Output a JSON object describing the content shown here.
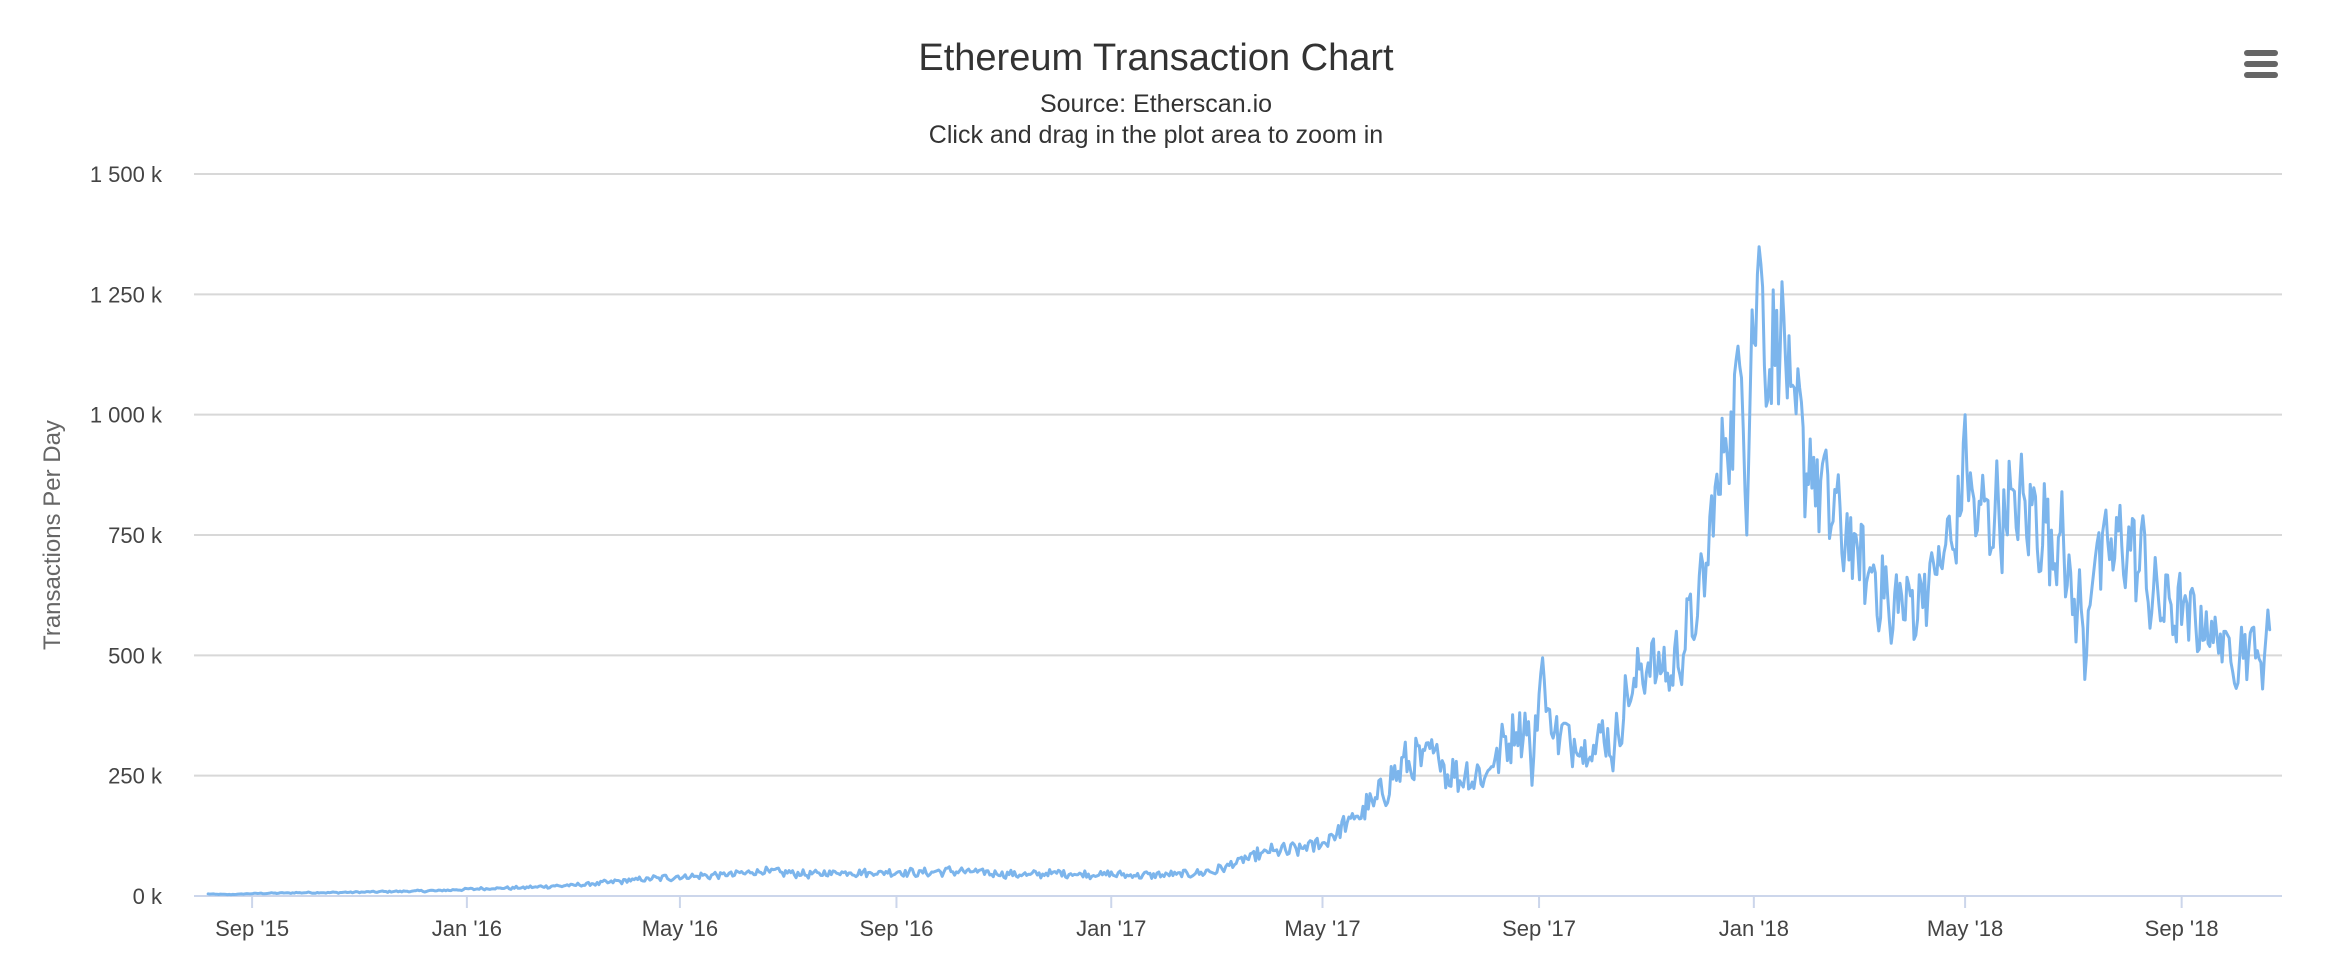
{
  "chart_data": {
    "type": "line",
    "title": "Ethereum Transaction Chart",
    "subtitle": "Source: Etherscan.io",
    "zoom_hint": "Click and drag in the plot area to zoom in",
    "xlabel": "",
    "ylabel": "Transactions Per Day",
    "x_type": "date",
    "xlim": [
      "2015-07-30",
      "2018-10-28"
    ],
    "ylim": [
      0,
      1500000
    ],
    "yticks": [
      {
        "value": 0,
        "label": "0 k"
      },
      {
        "value": 250000,
        "label": "250 k"
      },
      {
        "value": 500000,
        "label": "500 k"
      },
      {
        "value": 750000,
        "label": "750 k"
      },
      {
        "value": 1000000,
        "label": "1 000 k"
      },
      {
        "value": 1250000,
        "label": "1 250 k"
      },
      {
        "value": 1500000,
        "label": "1 500 k"
      }
    ],
    "xticks": [
      {
        "value": "2015-09-01",
        "label": "Sep '15"
      },
      {
        "value": "2016-01-01",
        "label": "Jan '16"
      },
      {
        "value": "2016-05-01",
        "label": "May '16"
      },
      {
        "value": "2016-09-01",
        "label": "Sep '16"
      },
      {
        "value": "2017-01-01",
        "label": "Jan '17"
      },
      {
        "value": "2017-05-01",
        "label": "May '17"
      },
      {
        "value": "2017-09-01",
        "label": "Sep '17"
      },
      {
        "value": "2018-01-01",
        "label": "Jan '18"
      },
      {
        "value": "2018-05-01",
        "label": "May '18"
      },
      {
        "value": "2018-09-01",
        "label": "Sep '18"
      }
    ],
    "grid": true,
    "legend": "none",
    "series_color": "#7cb5ec",
    "series": [
      {
        "values": [
          [
            "2015-08-07",
            4000
          ],
          [
            "2015-08-20",
            3000
          ],
          [
            "2015-09-01",
            5000
          ],
          [
            "2015-09-15",
            6000
          ],
          [
            "2015-10-01",
            7000
          ],
          [
            "2015-10-15",
            7000
          ],
          [
            "2015-11-01",
            8000
          ],
          [
            "2015-11-15",
            9000
          ],
          [
            "2015-12-01",
            10000
          ],
          [
            "2015-12-15",
            11000
          ],
          [
            "2016-01-01",
            14000
          ],
          [
            "2016-01-15",
            16000
          ],
          [
            "2016-02-01",
            17000
          ],
          [
            "2016-02-15",
            20000
          ],
          [
            "2016-03-01",
            22000
          ],
          [
            "2016-03-15",
            26000
          ],
          [
            "2016-04-01",
            32000
          ],
          [
            "2016-04-15",
            36000
          ],
          [
            "2016-05-01",
            40000
          ],
          [
            "2016-05-15",
            42000
          ],
          [
            "2016-06-01",
            45000
          ],
          [
            "2016-06-15",
            52000
          ],
          [
            "2016-07-01",
            48000
          ],
          [
            "2016-07-15",
            45000
          ],
          [
            "2016-08-01",
            50000
          ],
          [
            "2016-08-15",
            48000
          ],
          [
            "2016-09-01",
            50000
          ],
          [
            "2016-09-15",
            48000
          ],
          [
            "2016-10-01",
            52000
          ],
          [
            "2016-10-15",
            50000
          ],
          [
            "2016-11-01",
            46000
          ],
          [
            "2016-11-15",
            44000
          ],
          [
            "2016-12-01",
            48000
          ],
          [
            "2016-12-15",
            45000
          ],
          [
            "2017-01-01",
            45000
          ],
          [
            "2017-01-15",
            43000
          ],
          [
            "2017-02-01",
            44000
          ],
          [
            "2017-02-15",
            46000
          ],
          [
            "2017-03-01",
            52000
          ],
          [
            "2017-03-15",
            72000
          ],
          [
            "2017-04-01",
            92000
          ],
          [
            "2017-04-15",
            95000
          ],
          [
            "2017-05-01",
            110000
          ],
          [
            "2017-05-15",
            150000
          ],
          [
            "2017-06-01",
            200000
          ],
          [
            "2017-06-15",
            270000
          ],
          [
            "2017-07-01",
            290000
          ],
          [
            "2017-07-15",
            250000
          ],
          [
            "2017-08-01",
            250000
          ],
          [
            "2017-08-15",
            330000
          ],
          [
            "2017-09-01",
            390000
          ],
          [
            "2017-09-15",
            330000
          ],
          [
            "2017-10-01",
            310000
          ],
          [
            "2017-10-15",
            360000
          ],
          [
            "2017-11-01",
            490000
          ],
          [
            "2017-11-15",
            460000
          ],
          [
            "2017-12-01",
            610000
          ],
          [
            "2017-12-15",
            930000
          ],
          [
            "2018-01-01",
            1200000
          ],
          [
            "2018-01-15",
            1100000
          ],
          [
            "2018-02-01",
            900000
          ],
          [
            "2018-02-15",
            800000
          ],
          [
            "2018-03-01",
            700000
          ],
          [
            "2018-03-15",
            640000
          ],
          [
            "2018-04-01",
            600000
          ],
          [
            "2018-04-15",
            680000
          ],
          [
            "2018-05-01",
            800000
          ],
          [
            "2018-05-15",
            790000
          ],
          [
            "2018-06-01",
            810000
          ],
          [
            "2018-06-15",
            770000
          ],
          [
            "2018-07-01",
            600000
          ],
          [
            "2018-07-15",
            700000
          ],
          [
            "2018-08-01",
            740000
          ],
          [
            "2018-08-15",
            620000
          ],
          [
            "2018-09-01",
            590000
          ],
          [
            "2018-09-15",
            560000
          ],
          [
            "2018-10-01",
            500000
          ],
          [
            "2018-10-15",
            530000
          ],
          [
            "2018-10-21",
            600000
          ]
        ],
        "peaks": [
          [
            "2017-07-05",
            315000
          ],
          [
            "2017-09-03",
            495000
          ],
          [
            "2017-11-29",
            545000
          ],
          [
            "2017-12-24",
            1100000
          ],
          [
            "2018-01-04",
            1349000
          ],
          [
            "2018-01-17",
            1276000
          ],
          [
            "2018-05-01",
            1000000
          ],
          [
            "2018-06-25",
            840000
          ],
          [
            "2018-08-10",
            790000
          ]
        ],
        "troughs": [
          [
            "2017-08-28",
            230000
          ],
          [
            "2017-10-13",
            260000
          ],
          [
            "2017-12-28",
            750000
          ],
          [
            "2018-03-20",
            525000
          ],
          [
            "2018-07-08",
            450000
          ],
          [
            "2018-10-17",
            430000
          ]
        ]
      }
    ]
  },
  "ui": {
    "menu_icon": "hamburger-icon"
  }
}
